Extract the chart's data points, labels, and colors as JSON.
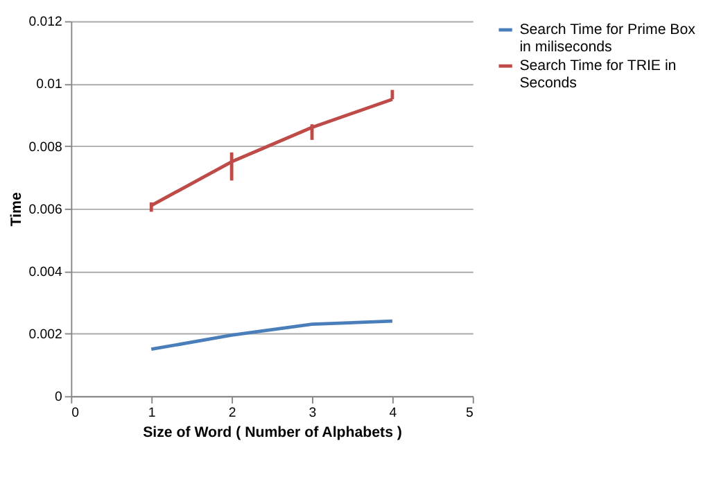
{
  "chart_data": {
    "type": "line",
    "xlabel": "Size of Word ( Number of Alphabets )",
    "ylabel": "Time",
    "x": [
      1,
      2,
      3,
      4
    ],
    "series": [
      {
        "name": "Search Time for Prime Box in miliseconds",
        "color": "#4a7ebb",
        "values": [
          0.0015,
          0.00195,
          0.0023,
          0.0024
        ]
      },
      {
        "name": "Search Time for TRIE in Seconds",
        "color": "#be4b48",
        "values": [
          0.0061,
          0.0075,
          0.0086,
          0.0095
        ],
        "errors": [
          [
            0.0059,
            0.0062
          ],
          [
            0.0069,
            0.0078
          ],
          [
            0.0082,
            0.0087
          ],
          [
            0.0095,
            0.0098
          ]
        ]
      }
    ],
    "xlim": [
      0,
      5
    ],
    "xticks": [
      0,
      1,
      2,
      3,
      4,
      5
    ],
    "ylim": [
      0,
      0.012
    ],
    "yticks": [
      0,
      0.002,
      0.004,
      0.006,
      0.008,
      0.01,
      0.012
    ],
    "grid": "y",
    "legend": "right",
    "marker": "none",
    "line_style": "solid"
  }
}
